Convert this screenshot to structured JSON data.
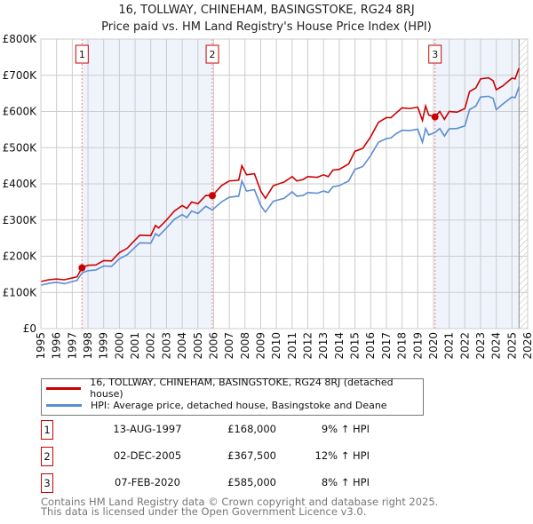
{
  "title": "16, TOLLWAY, CHINEHAM, BASINGSTOKE, RG24 8RJ",
  "subtitle": "Price paid vs. HM Land Registry's House Price Index (HPI)",
  "chart_data": {
    "type": "line",
    "xlim": [
      1995,
      2026
    ],
    "ylim": [
      0,
      800000
    ],
    "yticks": [
      {
        "v": 0,
        "label": "£0"
      },
      {
        "v": 100000,
        "label": "£100K"
      },
      {
        "v": 200000,
        "label": "£200K"
      },
      {
        "v": 300000,
        "label": "£300K"
      },
      {
        "v": 400000,
        "label": "£400K"
      },
      {
        "v": 500000,
        "label": "£500K"
      },
      {
        "v": 600000,
        "label": "£600K"
      },
      {
        "v": 700000,
        "label": "£700K"
      },
      {
        "v": 800000,
        "label": "£800K"
      }
    ],
    "xticks": [
      "1995",
      "1996",
      "1997",
      "1998",
      "1999",
      "2000",
      "2001",
      "2002",
      "2003",
      "2004",
      "2005",
      "2006",
      "2007",
      "2008",
      "2009",
      "2010",
      "2011",
      "2012",
      "2013",
      "2014",
      "2015",
      "2016",
      "2017",
      "2018",
      "2019",
      "2020",
      "2021",
      "2022",
      "2023",
      "2024",
      "2025",
      "2026"
    ],
    "grid": true,
    "shaded_ranges": [
      [
        1997.62,
        2005.92
      ],
      [
        2020.1,
        2025.45
      ]
    ],
    "hatched_from": 2025.45,
    "series": [
      {
        "name": "16, TOLLWAY, CHINEHAM, BASINGSTOKE, RG24 8RJ (detached house)",
        "color": "#cc0000",
        "x": [
          1995,
          1995.5,
          1996,
          1996.5,
          1997,
          1997.3,
          1997.62,
          1998,
          1998.5,
          1999,
          1999.5,
          2000,
          2000.5,
          2001,
          2001.3,
          2002,
          2002.3,
          2002.5,
          2003,
          2003.5,
          2004,
          2004.3,
          2004.6,
          2005,
          2005.5,
          2005.92,
          2006.5,
          2007,
          2007.6,
          2007.8,
          2008.1,
          2008.6,
          2009,
          2009.3,
          2009.8,
          2010.5,
          2011,
          2011.3,
          2011.7,
          2012,
          2012.6,
          2013,
          2013.3,
          2013.6,
          2014,
          2014.6,
          2015,
          2015.5,
          2016,
          2016.5,
          2017,
          2017.3,
          2017.6,
          2018,
          2018.5,
          2019,
          2019.3,
          2019.5,
          2019.7,
          2020.1,
          2020.4,
          2020.7,
          2021,
          2021.5,
          2022,
          2022.3,
          2022.7,
          2023,
          2023.5,
          2023.8,
          2024,
          2024.4,
          2025,
          2025.2,
          2025.45
        ],
        "y": [
          130000,
          135000,
          137000,
          135000,
          140000,
          143000,
          168000,
          175000,
          176000,
          188000,
          187000,
          210000,
          222000,
          245000,
          258000,
          257000,
          285000,
          278000,
          300000,
          325000,
          340000,
          332000,
          350000,
          345000,
          368000,
          367500,
          395000,
          408000,
          410000,
          450000,
          425000,
          428000,
          380000,
          360000,
          395000,
          405000,
          420000,
          408000,
          412000,
          420000,
          418000,
          425000,
          420000,
          438000,
          440000,
          455000,
          490000,
          498000,
          530000,
          570000,
          583000,
          583000,
          595000,
          610000,
          608000,
          612000,
          575000,
          615000,
          590000,
          585000,
          600000,
          578000,
          600000,
          598000,
          608000,
          655000,
          665000,
          690000,
          693000,
          685000,
          660000,
          670000,
          692000,
          690000,
          720000
        ]
      },
      {
        "name": "HPI: Average price, detached house, Basingstoke and Deane",
        "color": "#5b8dd0",
        "x": [
          1995,
          1995.5,
          1996,
          1996.5,
          1997,
          1997.3,
          1997.62,
          1998,
          1998.5,
          1999,
          1999.5,
          2000,
          2000.5,
          2001,
          2001.3,
          2002,
          2002.3,
          2002.5,
          2003,
          2003.5,
          2004,
          2004.3,
          2004.6,
          2005,
          2005.5,
          2005.92,
          2006.5,
          2007,
          2007.6,
          2007.8,
          2008.1,
          2008.6,
          2009,
          2009.3,
          2009.8,
          2010.5,
          2011,
          2011.3,
          2011.7,
          2012,
          2012.6,
          2013,
          2013.3,
          2013.6,
          2014,
          2014.6,
          2015,
          2015.5,
          2016,
          2016.5,
          2017,
          2017.3,
          2017.6,
          2018,
          2018.5,
          2019,
          2019.3,
          2019.5,
          2019.7,
          2020.1,
          2020.4,
          2020.7,
          2021,
          2021.5,
          2022,
          2022.3,
          2022.7,
          2023,
          2023.5,
          2023.8,
          2024,
          2024.4,
          2025,
          2025.2,
          2025.45
        ],
        "y": [
          120000,
          125000,
          128000,
          124000,
          130000,
          133000,
          154000,
          160000,
          162000,
          173000,
          172000,
          193000,
          204000,
          225000,
          237000,
          236000,
          262000,
          256000,
          278000,
          302000,
          315000,
          307000,
          325000,
          318000,
          338000,
          328000,
          350000,
          363000,
          366000,
          408000,
          380000,
          384000,
          340000,
          322000,
          352000,
          360000,
          378000,
          366000,
          368000,
          376000,
          374000,
          380000,
          376000,
          392000,
          395000,
          408000,
          440000,
          448000,
          478000,
          515000,
          525000,
          527000,
          538000,
          548000,
          547000,
          551000,
          515000,
          553000,
          535000,
          542000,
          553000,
          532000,
          552000,
          553000,
          560000,
          605000,
          615000,
          640000,
          642000,
          636000,
          605000,
          620000,
          640000,
          638000,
          668000
        ]
      }
    ],
    "sales": [
      {
        "n": "1",
        "x": 1997.62,
        "y": 168000
      },
      {
        "n": "2",
        "x": 2005.92,
        "y": 367500
      },
      {
        "n": "3",
        "x": 2020.1,
        "y": 585000
      }
    ]
  },
  "legend": {
    "red": "16, TOLLWAY, CHINEHAM, BASINGSTOKE, RG24 8RJ (detached house)",
    "blue": "HPI: Average price, detached house, Basingstoke and Deane"
  },
  "transactions": [
    {
      "n": "1",
      "date": "13-AUG-1997",
      "price": "£168,000",
      "hpi": "9% ↑ HPI"
    },
    {
      "n": "2",
      "date": "02-DEC-2005",
      "price": "£367,500",
      "hpi": "12% ↑ HPI"
    },
    {
      "n": "3",
      "date": "07-FEB-2020",
      "price": "£585,000",
      "hpi": "8% ↑ HPI"
    }
  ],
  "footer": [
    "Contains HM Land Registry data © Crown copyright and database right 2025.",
    "This data is licensed under the Open Government Licence v3.0."
  ]
}
